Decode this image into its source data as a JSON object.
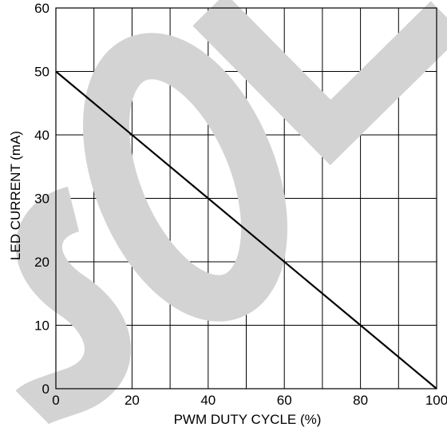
{
  "chart_data": {
    "type": "line",
    "xlabel": "PWM DUTY CYCLE (%)",
    "ylabel": "LED CURRENT (mA)",
    "xlim": [
      0,
      100
    ],
    "ylim": [
      0,
      60
    ],
    "x_ticks": [
      0,
      20,
      40,
      60,
      80,
      100
    ],
    "y_ticks": [
      0,
      10,
      20,
      30,
      40,
      50,
      60
    ],
    "x_grid_step": 10,
    "y_grid_step": 10,
    "grid": true,
    "series": [
      {
        "x": [
          0,
          100
        ],
        "y": [
          50,
          0
        ],
        "color": "#000000"
      }
    ],
    "watermark": {
      "text": "SOLD",
      "color": "#d3d3d3"
    }
  }
}
